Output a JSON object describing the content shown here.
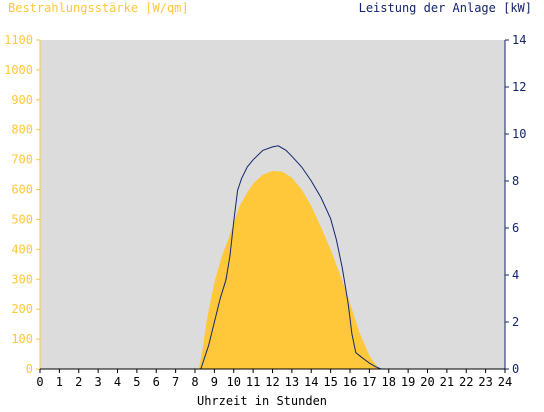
{
  "header": {
    "left_title": "Bestrahlungsstärke [W/qm]",
    "right_title": "Leistung der Anlage [kW]"
  },
  "chart_data": {
    "type": "area",
    "xlabel": "Uhrzeit in Stunden",
    "ylabel_left": "Bestrahlungsstärke [W/qm]",
    "ylabel_right": "Leistung der Anlage [kW]",
    "x_ticks": [
      "0",
      "1",
      "2",
      "3",
      "4",
      "5",
      "6",
      "7",
      "8",
      "9",
      "10",
      "11",
      "12",
      "13",
      "14",
      "15",
      "16",
      "17",
      "18",
      "19",
      "20",
      "21",
      "22",
      "23",
      "24"
    ],
    "y_left_ticks": [
      "0",
      "100",
      "200",
      "300",
      "400",
      "500",
      "600",
      "700",
      "800",
      "900",
      "1000",
      "1100"
    ],
    "y_right_ticks": [
      "0",
      "2",
      "4",
      "6",
      "8",
      "10",
      "12",
      "14"
    ],
    "xlim": [
      0,
      24
    ],
    "ylim_left": [
      0,
      1100
    ],
    "ylim_right": [
      0,
      14
    ],
    "grid": false,
    "colors": {
      "plot_background": "#dcdcdc",
      "irradiance_fill": "#ffc83a",
      "power_line": "#14246e",
      "left_axis": "#ffc83a",
      "right_axis": "#14246e"
    },
    "series": [
      {
        "axis": "left",
        "style": "area",
        "x": [
          0,
          8.2,
          8.4,
          8.6,
          9.0,
          9.4,
          9.7,
          10.0,
          10.3,
          10.7,
          11.0,
          11.5,
          12.0,
          12.5,
          13.0,
          13.5,
          14.0,
          14.5,
          15.0,
          15.4,
          15.8,
          16.2,
          16.5,
          16.8,
          17.0,
          17.2,
          17.4,
          17.5,
          24
        ],
        "y": [
          0,
          0,
          70,
          160,
          290,
          380,
          430,
          490,
          545,
          590,
          620,
          650,
          662,
          660,
          640,
          600,
          545,
          475,
          400,
          330,
          260,
          180,
          120,
          75,
          45,
          25,
          10,
          0,
          0
        ]
      },
      {
        "axis": "right",
        "style": "line",
        "x": [
          0,
          8.3,
          8.5,
          8.7,
          9.0,
          9.3,
          9.6,
          9.8,
          10.0,
          10.2,
          10.4,
          10.7,
          11.0,
          11.5,
          12.0,
          12.3,
          12.7,
          13.0,
          13.5,
          14.0,
          14.5,
          15.0,
          15.3,
          15.6,
          15.9,
          16.1,
          16.3,
          16.6,
          17.0,
          17.3,
          17.6,
          24
        ],
        "y": [
          0,
          0,
          0.5,
          1.0,
          2.0,
          3.0,
          3.8,
          4.8,
          6.3,
          7.6,
          8.1,
          8.6,
          8.9,
          9.3,
          9.45,
          9.5,
          9.3,
          9.05,
          8.6,
          8.0,
          7.3,
          6.4,
          5.5,
          4.3,
          2.8,
          1.5,
          0.7,
          0.5,
          0.25,
          0.1,
          0,
          0
        ]
      }
    ]
  }
}
